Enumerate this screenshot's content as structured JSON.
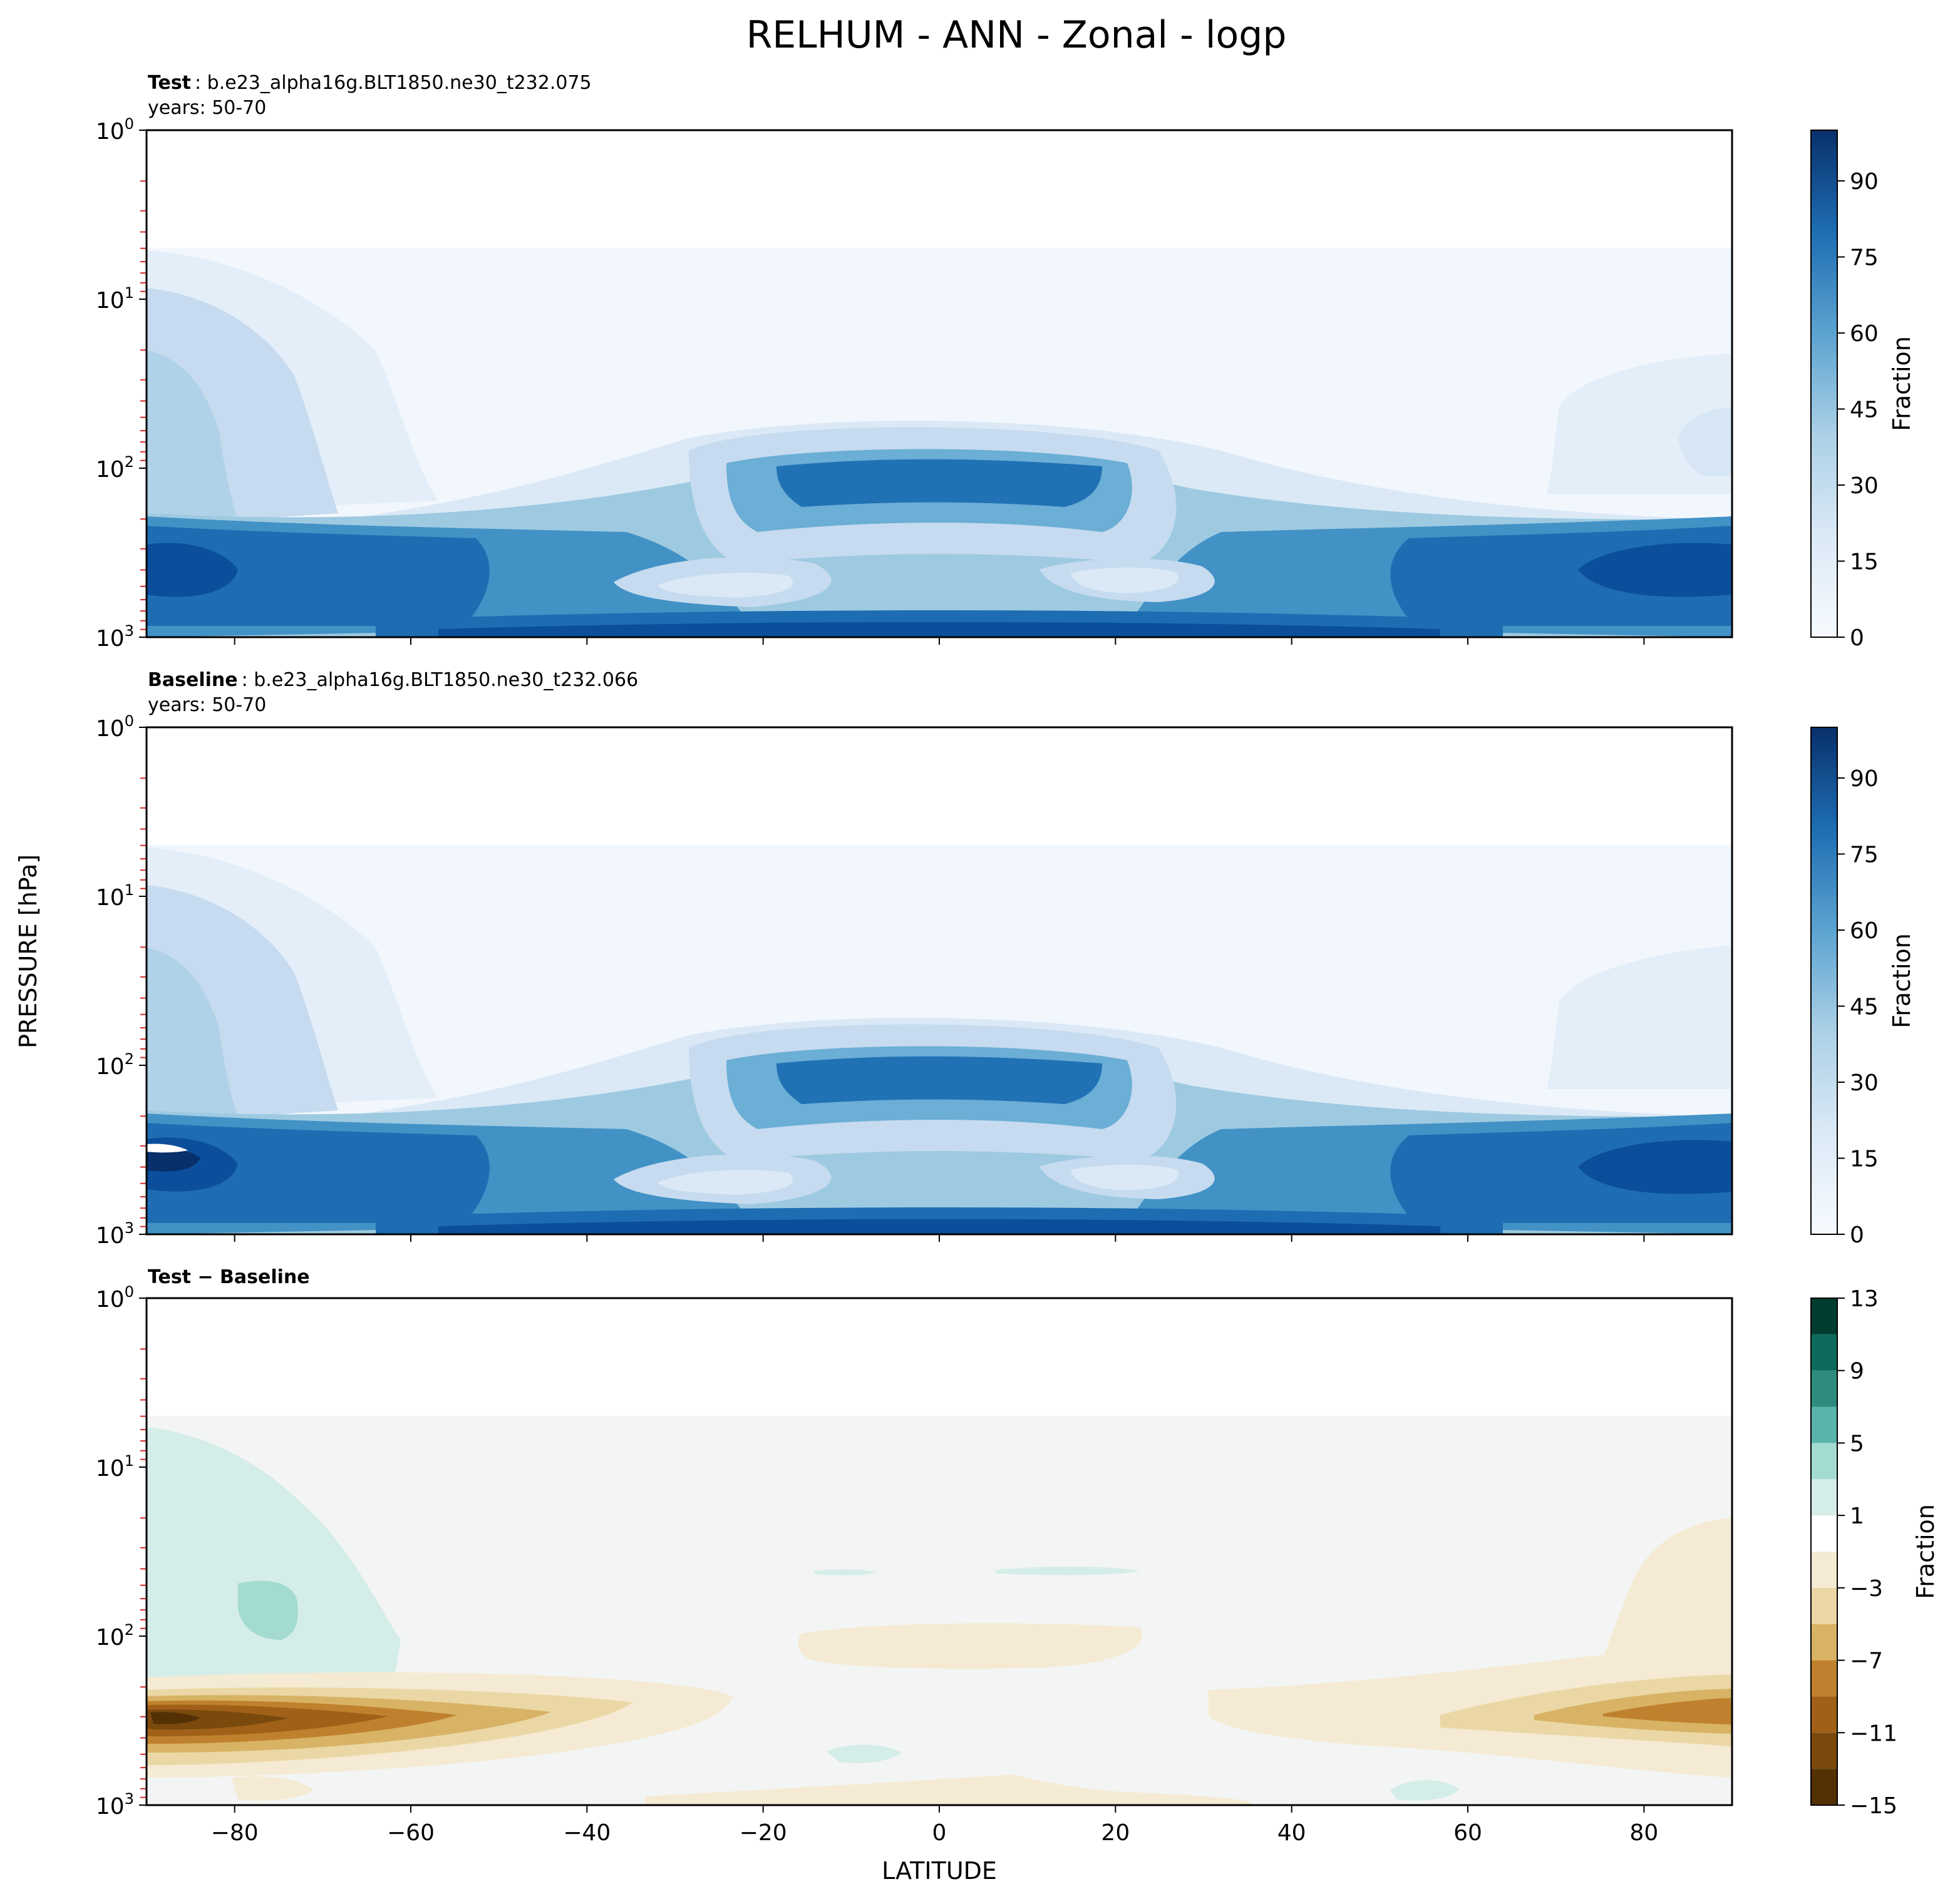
{
  "figure": {
    "title": "RELHUM - ANN - Zonal - logp",
    "ylabel": "PRESSURE [hPa]",
    "xlabel": "LATITUDE"
  },
  "panels": [
    {
      "id": "test",
      "title_bold": "Test",
      "title_rest": ": b.e23_alpha16g.BLT1850.ne30_t232.075",
      "subtitle": "years: 50-70",
      "colorbar_label": "Fraction",
      "colorbar_ticks": [
        "0",
        "15",
        "30",
        "45",
        "60",
        "75",
        "90"
      ]
    },
    {
      "id": "baseline",
      "title_bold": "Baseline",
      "title_rest": ": b.e23_alpha16g.BLT1850.ne30_t232.066",
      "subtitle": "years: 50-70",
      "colorbar_label": "Fraction",
      "colorbar_ticks": [
        "0",
        "15",
        "30",
        "45",
        "60",
        "75",
        "90"
      ]
    },
    {
      "id": "diff",
      "title_bold": "Test − Baseline",
      "title_rest": "",
      "subtitle": "",
      "colorbar_label": "Fraction",
      "colorbar_ticks": [
        "−15",
        "−11",
        "−7",
        "−3",
        "1",
        "5",
        "9",
        "13"
      ]
    }
  ],
  "chart_data": [
    {
      "type": "heatmap",
      "subtype": "filled contour",
      "panel": "test",
      "x_axis": {
        "label": "LATITUDE",
        "range": [
          -90,
          90
        ],
        "ticks": [
          -80,
          -60,
          -40,
          -20,
          0,
          20,
          40,
          60,
          80
        ]
      },
      "y_axis": {
        "label": "PRESSURE [hPa]",
        "scale": "log",
        "inverted": true,
        "range": [
          1,
          1000
        ],
        "ticks": [
          "10^0",
          "10^1",
          "10^2",
          "10^3"
        ]
      },
      "colormap": "Blues",
      "levels": [
        0,
        5,
        10,
        15,
        20,
        25,
        30,
        35,
        40,
        45,
        50,
        55,
        60,
        65,
        70,
        75,
        80,
        85,
        90,
        95,
        100
      ],
      "colorbar": {
        "label": "Fraction",
        "ticks": [
          0,
          15,
          30,
          45,
          60,
          75,
          90
        ]
      },
      "data_top_pressure": 5,
      "features": [
        {
          "description": "Tropical upper-troposphere maximum",
          "lat_range": [
            -20,
            22
          ],
          "pressure_range": [
            90,
            200
          ],
          "value": 75
        },
        {
          "description": "Subtropical minima",
          "lat_range": [
            -30,
            -5
          ],
          "pressure_range": [
            400,
            550
          ],
          "value": 20
        },
        {
          "description": "Subtropical minima",
          "lat_range": [
            10,
            30
          ],
          "pressure_range": [
            400,
            550
          ],
          "value": 20
        },
        {
          "description": "Extratropical lower-troposphere maxima",
          "lat_range": [
            -90,
            -50
          ],
          "pressure_range": [
            250,
            900
          ],
          "value": 85
        },
        {
          "description": "Extratropical lower-troposphere maxima",
          "lat_range": [
            50,
            90
          ],
          "pressure_range": [
            250,
            900
          ],
          "value": 85
        },
        {
          "description": "Antarctic stratospheric moisture",
          "lat_range": [
            -90,
            -60
          ],
          "pressure_range": [
            5,
            100
          ],
          "value": 35
        },
        {
          "description": "Arctic stratospheric moisture",
          "lat_range": [
            70,
            90
          ],
          "pressure_range": [
            20,
            100
          ],
          "value": 20
        }
      ]
    },
    {
      "type": "heatmap",
      "subtype": "filled contour",
      "panel": "baseline",
      "x_axis": {
        "label": "LATITUDE",
        "range": [
          -90,
          90
        ],
        "ticks": [
          -80,
          -60,
          -40,
          -20,
          0,
          20,
          40,
          60,
          80
        ]
      },
      "y_axis": {
        "label": "PRESSURE [hPa]",
        "scale": "log",
        "inverted": true,
        "range": [
          1,
          1000
        ],
        "ticks": [
          "10^0",
          "10^1",
          "10^2",
          "10^3"
        ]
      },
      "colormap": "Blues",
      "levels": [
        0,
        5,
        10,
        15,
        20,
        25,
        30,
        35,
        40,
        45,
        50,
        55,
        60,
        65,
        70,
        75,
        80,
        85,
        90,
        95,
        100
      ],
      "colorbar": {
        "label": "Fraction",
        "ticks": [
          0,
          15,
          30,
          45,
          60,
          75,
          90
        ]
      },
      "data_top_pressure": 5,
      "features": [
        {
          "description": "Tropical upper-troposphere maximum",
          "lat_range": [
            -20,
            22
          ],
          "pressure_range": [
            90,
            200
          ],
          "value": 75
        },
        {
          "description": "Subtropical minima",
          "lat_range": [
            -30,
            -5
          ],
          "pressure_range": [
            400,
            550
          ],
          "value": 20
        },
        {
          "description": "Subtropical minima",
          "lat_range": [
            10,
            30
          ],
          "pressure_range": [
            400,
            550
          ],
          "value": 20
        },
        {
          "description": "Extratropical lower-troposphere maxima",
          "lat_range": [
            -90,
            -50
          ],
          "pressure_range": [
            250,
            900
          ],
          "value": 90
        },
        {
          "description": "Extratropical lower-troposphere maxima",
          "lat_range": [
            50,
            90
          ],
          "pressure_range": [
            250,
            900
          ],
          "value": 85
        },
        {
          "description": "Antarctic stratospheric moisture",
          "lat_range": [
            -90,
            -60
          ],
          "pressure_range": [
            5,
            100
          ],
          "value": 30
        },
        {
          "description": "Arctic stratospheric moisture",
          "lat_range": [
            70,
            90
          ],
          "pressure_range": [
            20,
            100
          ],
          "value": 15
        }
      ]
    },
    {
      "type": "heatmap",
      "subtype": "filled contour",
      "panel": "diff",
      "x_axis": {
        "label": "LATITUDE",
        "range": [
          -90,
          90
        ],
        "ticks": [
          -80,
          -60,
          -40,
          -20,
          0,
          20,
          40,
          60,
          80
        ]
      },
      "y_axis": {
        "label": "PRESSURE [hPa]",
        "scale": "log",
        "inverted": true,
        "range": [
          1,
          1000
        ],
        "ticks": [
          "10^0",
          "10^1",
          "10^2",
          "10^3"
        ]
      },
      "colormap": "BrBG",
      "levels": [
        -15,
        -13,
        -11,
        -9,
        -7,
        -5,
        -3,
        -1,
        1,
        3,
        5,
        7,
        9,
        11,
        13
      ],
      "colorbar": {
        "label": "Fraction",
        "ticks": [
          -15,
          -11,
          -7,
          -3,
          1,
          5,
          9,
          13
        ]
      },
      "data_top_pressure": 5,
      "features": [
        {
          "description": "Antarctic stratosphere positive difference",
          "lat_range": [
            -90,
            -62
          ],
          "pressure_range": [
            6,
            110
          ],
          "value": 2
        },
        {
          "description": "Antarctic positive core",
          "lat_range": [
            -79,
            -73
          ],
          "pressure_range": [
            50,
            90
          ],
          "value": 4
        },
        {
          "description": "Antarctic lower-troposphere negative difference",
          "lat_range": [
            -90,
            -55
          ],
          "pressure_range": [
            180,
            450
          ],
          "value": -14
        },
        {
          "description": "Tropical upper-troposphere negative difference",
          "lat_range": [
            -16,
            22
          ],
          "pressure_range": [
            90,
            135
          ],
          "value": -2
        },
        {
          "description": "Arctic negative difference",
          "lat_range": [
            64,
            90
          ],
          "pressure_range": [
            180,
            320
          ],
          "value": -8
        },
        {
          "description": "Arctic stratosphere negative difference",
          "lat_range": [
            74,
            90
          ],
          "pressure_range": [
            20,
            200
          ],
          "value": -2
        }
      ]
    }
  ]
}
